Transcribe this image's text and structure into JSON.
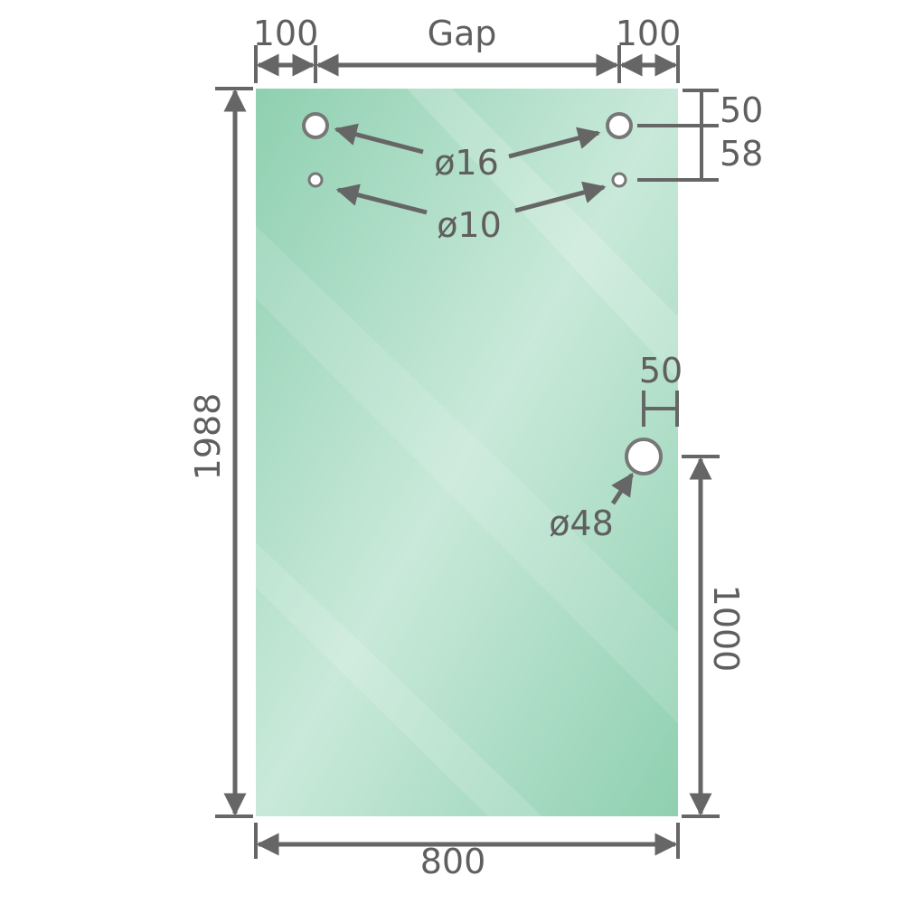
{
  "colors": {
    "glass_edge": "#8fd0b0",
    "glass_center": "#c9e9da",
    "line": "#666666",
    "text": "#5f5f5f"
  },
  "dimensions": {
    "left_offset": "100",
    "gap": "Gap",
    "right_offset": "100",
    "top_to_hole": "50",
    "hole_spacing": "58",
    "height": "1988",
    "width": "800",
    "handle_edge_offset": "50",
    "handle_height": "1000"
  },
  "holes": {
    "large_top": "ø16",
    "small_top": "ø10",
    "handle": "ø48"
  }
}
